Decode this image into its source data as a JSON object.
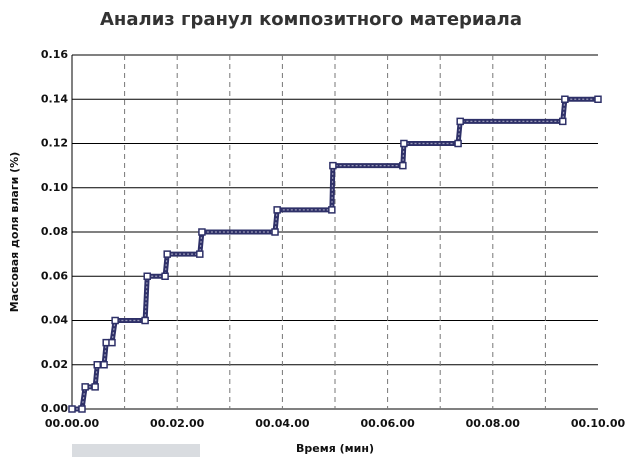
{
  "chart_data": {
    "type": "line",
    "title": "Анализ гранул композитного материала",
    "x_label": "Время (мин)",
    "y_label": "Массовая доля влаги (%)",
    "x": [
      0,
      0.19,
      0.25,
      0.44,
      0.48,
      0.61,
      0.65,
      0.76,
      0.82,
      1.39,
      1.43,
      1.77,
      1.81,
      2.43,
      2.47,
      3.86,
      3.9,
      4.94,
      4.96,
      6.29,
      6.31,
      7.34,
      7.38,
      9.33,
      9.37,
      10
    ],
    "series": [
      {
        "color": "#2e3068",
        "values": [
          0,
          0,
          0.01,
          0.01,
          0.02,
          0.02,
          0.03,
          0.03,
          0.04,
          0.04,
          0.06,
          0.06,
          0.07,
          0.07,
          0.08,
          0.08,
          0.09,
          0.09,
          0.11,
          0.11,
          0.12,
          0.12,
          0.13,
          0.13,
          0.14,
          0.14
        ]
      }
    ],
    "xlim": [
      0,
      10
    ],
    "xticks": [
      {
        "value": 0,
        "label": "00.00.00"
      },
      {
        "value": 2,
        "label": "00.02.00"
      },
      {
        "value": 4,
        "label": "00.04.00"
      },
      {
        "value": 6,
        "label": "00.06.00"
      },
      {
        "value": 8,
        "label": "00.08.00"
      },
      {
        "value": 10,
        "label": "00.10.00"
      }
    ],
    "xminorticks": [
      1,
      3,
      5,
      7,
      9
    ],
    "ylim": [
      0,
      0.16
    ],
    "yticks": [
      {
        "value": 0,
        "label": "0.00"
      },
      0.02,
      0.04,
      0.06,
      0.08,
      {
        "value": 0.1,
        "label": "0.10"
      },
      0.12,
      0.14,
      0.16
    ],
    "grid": true
  }
}
